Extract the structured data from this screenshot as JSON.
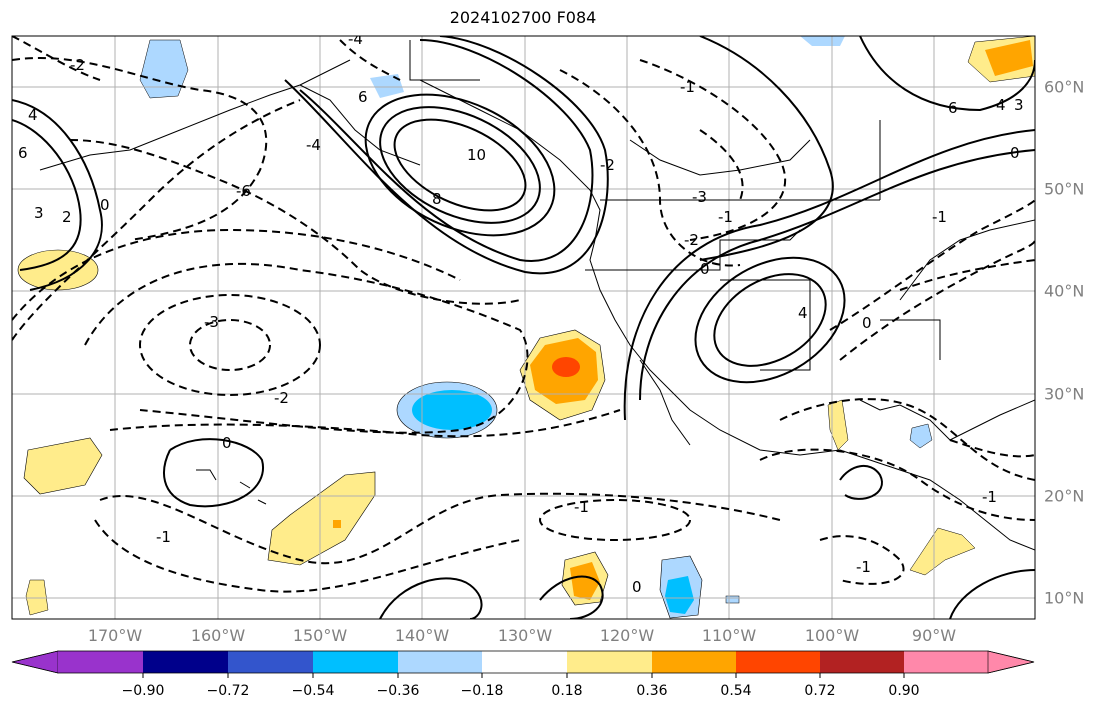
{
  "title": "2024102700 F084",
  "lon_labels": [
    "170°W",
    "160°W",
    "150°W",
    "140°W",
    "130°W",
    "120°W",
    "110°W",
    "100°W",
    "90°W"
  ],
  "lat_labels": [
    "60°N",
    "50°N",
    "40°N",
    "30°N",
    "20°N",
    "10°N"
  ],
  "colorbar": {
    "ticks": [
      "−0.90",
      "−0.72",
      "−0.54",
      "−0.36",
      "−0.18",
      "0.18",
      "0.36",
      "0.54",
      "0.72",
      "0.90"
    ],
    "colors": [
      "#9933cc",
      "#00008b",
      "#3355cc",
      "#00bfff",
      "#add8ff",
      "#ffffff",
      "#ffec8b",
      "#ffa500",
      "#ff4500",
      "#b22222",
      "#ff88aa"
    ]
  },
  "contour_labels": [
    "-2",
    "4",
    "6",
    "3",
    "2",
    "0",
    "-6",
    "-3",
    "-2",
    "0",
    "-1",
    "-4",
    "10",
    "8",
    "6",
    "-4",
    "-2",
    "-1",
    "-2",
    "0",
    "-3",
    "4",
    "-1",
    "6",
    "4",
    "3",
    "0",
    "-1",
    "-1",
    "-1",
    "0",
    "0",
    "-1"
  ],
  "colors": {
    "grid": "#b0b0b0",
    "coast": "#000000",
    "axis_text": "#808080"
  }
}
